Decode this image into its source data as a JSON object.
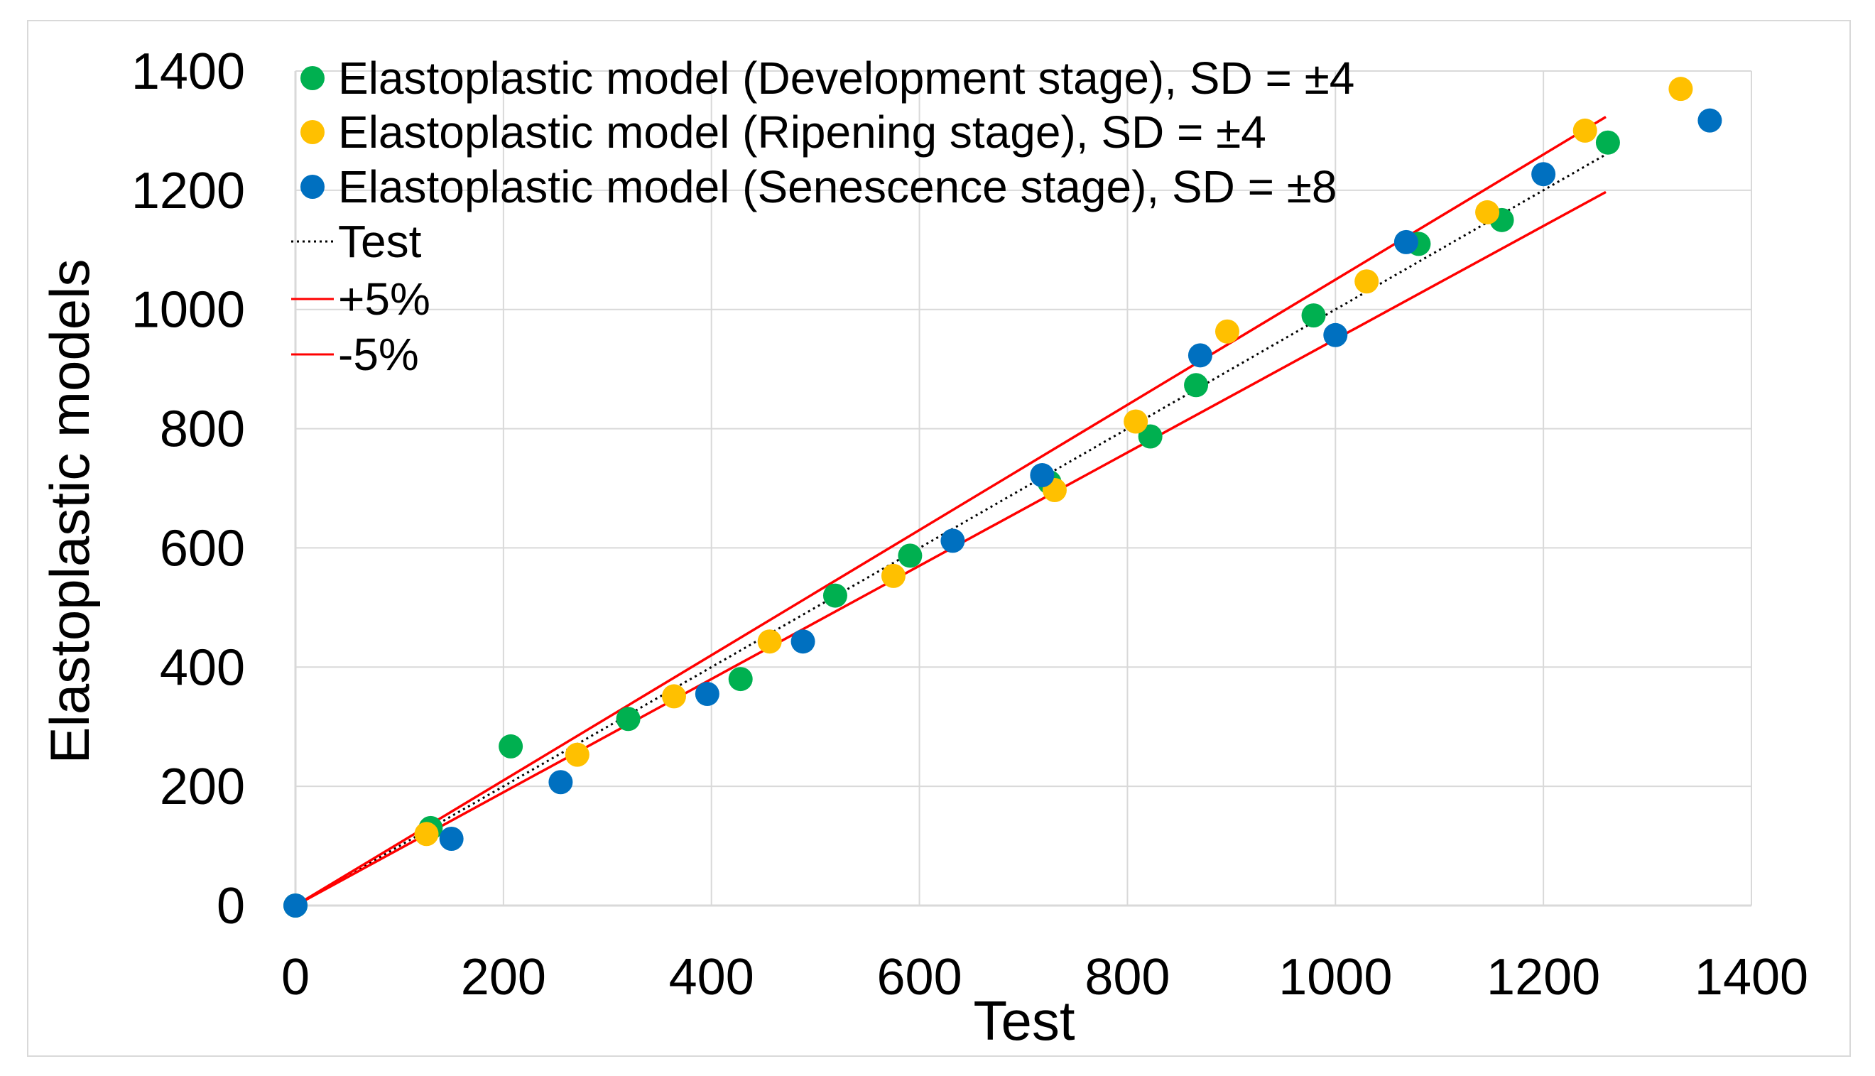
{
  "chart_data": {
    "type": "scatter",
    "title": "",
    "xlabel": "Test",
    "ylabel": "Elastoplastic models",
    "xlim": [
      0,
      1400
    ],
    "ylim": [
      0,
      1400
    ],
    "x_ticks": [
      "0",
      "200",
      "400",
      "600",
      "800",
      "1000",
      "1200",
      "1400"
    ],
    "y_ticks": [
      "0",
      "200",
      "400",
      "600",
      "800",
      "1000",
      "1200",
      "1400"
    ],
    "grid": true,
    "legend_position": "top-left",
    "series": [
      {
        "name": "Elastoplastic model (Development stage), SD = ±4",
        "kind": "scatter",
        "color": "#00b050",
        "points": [
          [
            0,
            0
          ],
          [
            130,
            130
          ],
          [
            207,
            267
          ],
          [
            320,
            313
          ],
          [
            428,
            380
          ],
          [
            519,
            520
          ],
          [
            591,
            587
          ],
          [
            725,
            710
          ],
          [
            822,
            787
          ],
          [
            866,
            873
          ],
          [
            979,
            990
          ],
          [
            1080,
            1110
          ],
          [
            1160,
            1150
          ],
          [
            1262,
            1280
          ]
        ]
      },
      {
        "name": "Elastoplastic model (Ripening stage), SD = ±4",
        "kind": "scatter",
        "color": "#ffc000",
        "points": [
          [
            126,
            120
          ],
          [
            271,
            253
          ],
          [
            364,
            351
          ],
          [
            456,
            443
          ],
          [
            575,
            553
          ],
          [
            730,
            697
          ],
          [
            808,
            812
          ],
          [
            896,
            963
          ],
          [
            1030,
            1047
          ],
          [
            1146,
            1163
          ],
          [
            1240,
            1300
          ],
          [
            1332,
            1370
          ]
        ]
      },
      {
        "name": "Elastoplastic model (Senescence stage), SD = ±8",
        "kind": "scatter",
        "color": "#0070c0",
        "points": [
          [
            0,
            0
          ],
          [
            150,
            112
          ],
          [
            255,
            207
          ],
          [
            396,
            355
          ],
          [
            488,
            443
          ],
          [
            632,
            612
          ],
          [
            718,
            722
          ],
          [
            870,
            923
          ],
          [
            1000,
            957
          ],
          [
            1068,
            1113
          ],
          [
            1200,
            1227
          ],
          [
            1360,
            1317
          ]
        ]
      },
      {
        "name": "Test",
        "kind": "line",
        "style": "dotted",
        "color": "#000000",
        "points": [
          [
            0,
            0
          ],
          [
            1260,
            1260
          ]
        ]
      },
      {
        "name": "+5%",
        "kind": "line",
        "style": "solid",
        "color": "#ff0000",
        "points": [
          [
            0,
            0
          ],
          [
            1260,
            1323
          ]
        ]
      },
      {
        "name": "-5%",
        "kind": "line",
        "style": "solid",
        "color": "#ff0000",
        "points": [
          [
            0,
            0
          ],
          [
            1260,
            1197
          ]
        ]
      }
    ]
  }
}
